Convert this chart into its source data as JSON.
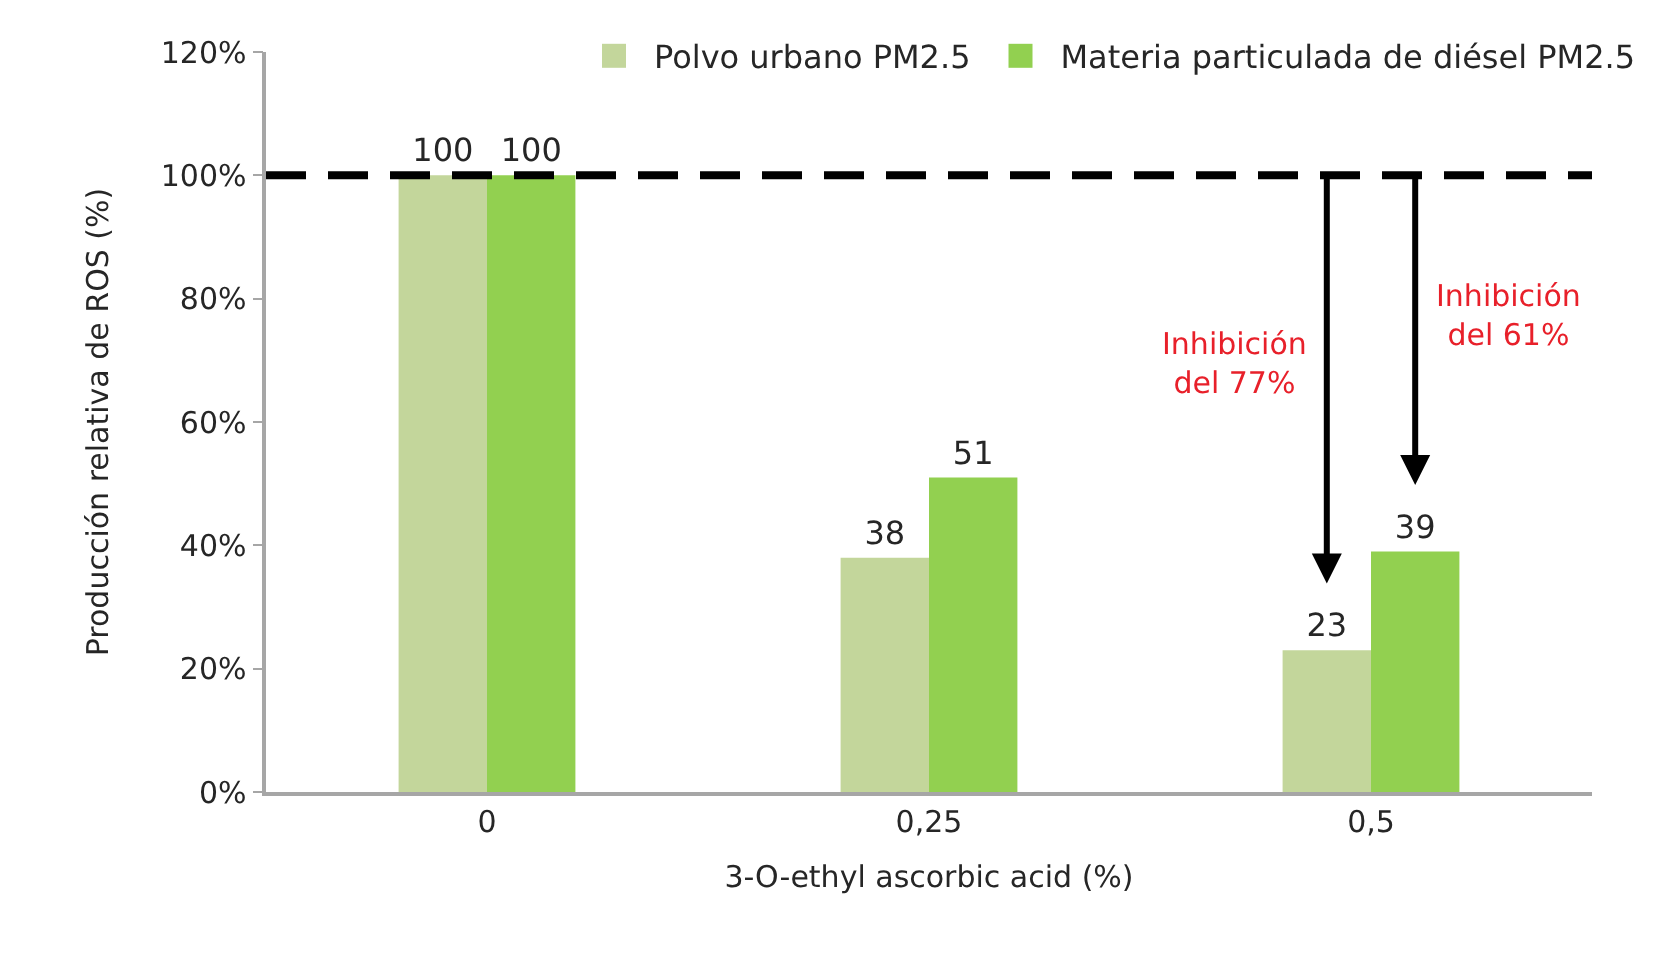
{
  "chart_data": {
    "type": "bar",
    "categories": [
      "0",
      "0,25",
      "0,5"
    ],
    "series": [
      {
        "name": "Polvo urbano PM2.5",
        "color": "#c3d69b",
        "values": [
          100,
          38,
          23
        ]
      },
      {
        "name": "Materia particulada de diésel PM2.5",
        "color": "#92d050",
        "values": [
          100,
          51,
          39
        ]
      }
    ],
    "xlabel": "3-O-ethyl ascorbic acid (%)",
    "ylabel": "Producción relativa de ROS (%)",
    "ylim": [
      0,
      120
    ],
    "yticks": [
      {
        "value": 0,
        "label": "0%"
      },
      {
        "value": 20,
        "label": "20%"
      },
      {
        "value": 40,
        "label": "40%"
      },
      {
        "value": 60,
        "label": "60%"
      },
      {
        "value": 80,
        "label": "80%"
      },
      {
        "value": 100,
        "label": "100%"
      },
      {
        "value": 120,
        "label": "120%"
      }
    ],
    "data_labels": true,
    "ref_lines": [
      {
        "axis": "y",
        "value": 100,
        "color": "#000000",
        "line_style": "dashed"
      }
    ],
    "annotations": [
      "Inhibición\ndel 77%",
      "Inhibición\ndel 61%"
    ],
    "legend": "top right"
  }
}
